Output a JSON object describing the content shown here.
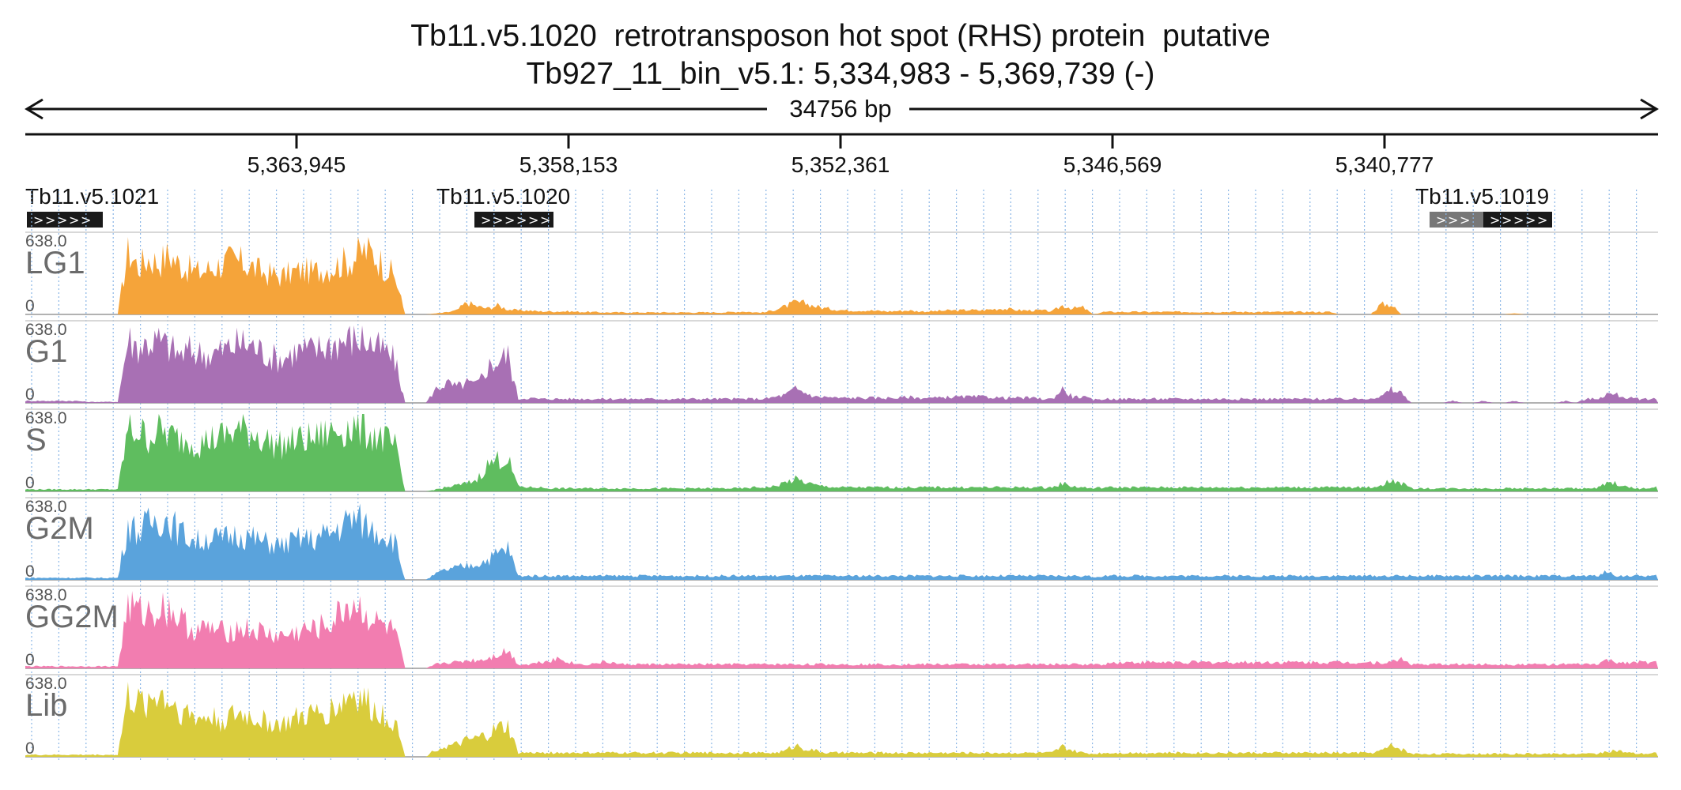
{
  "title": {
    "line1": "Tb11.v5.1020  retrotransposon hot spot (RHS) protein  putative",
    "line2": "Tb927_11_bin_v5.1: 5,334,983 - 5,369,739 (-)"
  },
  "ruler": {
    "span_label": "34756 bp",
    "ticks": [
      "5,363,945",
      "5,358,153",
      "5,352,361",
      "5,346,569",
      "5,340,777"
    ]
  },
  "genes": [
    {
      "name": "Tb11.v5.1021",
      "strand_glyph": ">"
    },
    {
      "name": "Tb11.v5.1020",
      "strand_glyph": ">"
    },
    {
      "name": "Tb11.v5.1019",
      "strand_glyph": ">"
    }
  ],
  "colors": {
    "LG1": "#f5a43a",
    "G1": "#a870b4",
    "S": "#5fbd5f",
    "G2M": "#5aa3dc",
    "GG2M": "#f27db0",
    "Lib": "#d9cc3c",
    "gene_box": "#1a1a1a",
    "gene_box_utr": "#777777",
    "gridline": "#8ab6e6"
  },
  "chart_data": {
    "type": "area",
    "x_range": [
      5369739,
      5334983
    ],
    "x_direction": "reversed (minus strand)",
    "ylim": [
      0,
      638.0
    ],
    "y_max_label": "638.0",
    "y_min_label": "0",
    "grid": "dotted vertical",
    "series": [
      {
        "name": "LG1",
        "profile": [
          0,
          0,
          0,
          0,
          0,
          0,
          0,
          0,
          0,
          0,
          640,
          480,
          560,
          520,
          600,
          500,
          450,
          420,
          460,
          500,
          540,
          520,
          480,
          420,
          400,
          380,
          420,
          440,
          420,
          460,
          480,
          520,
          560,
          640,
          600,
          480,
          380,
          0,
          0,
          0,
          10,
          20,
          40,
          120,
          80,
          60,
          90,
          50,
          40,
          40,
          30,
          30,
          30,
          30,
          25,
          25,
          20,
          20,
          20,
          20,
          20,
          20,
          20,
          20,
          20,
          20,
          20,
          20,
          20,
          25,
          30,
          20,
          20,
          50,
          80,
          120,
          110,
          80,
          60,
          50,
          40,
          40,
          40,
          35,
          30,
          35,
          40,
          30,
          30,
          35,
          40,
          40,
          45,
          40,
          50,
          60,
          50,
          40,
          40,
          40,
          30,
          90,
          60,
          70,
          0,
          25,
          25,
          25,
          25,
          25,
          25,
          25,
          25,
          25,
          25,
          25,
          25,
          25,
          25,
          25,
          25,
          25,
          25,
          25,
          25,
          25,
          25,
          25,
          0,
          0,
          0,
          0,
          100,
          100,
          0,
          0,
          0,
          0,
          0,
          0,
          0,
          0,
          0,
          0,
          0,
          15,
          0,
          0,
          0,
          0,
          0,
          0,
          0,
          0,
          0,
          0,
          0,
          0,
          0,
          0
        ]
      },
      {
        "name": "G1",
        "profile": [
          20,
          20,
          20,
          20,
          20,
          20,
          10,
          10,
          10,
          10,
          640,
          560,
          600,
          620,
          560,
          480,
          520,
          500,
          480,
          520,
          560,
          600,
          580,
          520,
          460,
          440,
          500,
          540,
          520,
          560,
          600,
          620,
          640,
          640,
          560,
          520,
          420,
          0,
          0,
          0,
          140,
          200,
          160,
          200,
          180,
          360,
          420,
          480,
          40,
          50,
          40,
          40,
          40,
          40,
          40,
          40,
          40,
          40,
          40,
          40,
          40,
          40,
          40,
          40,
          40,
          40,
          40,
          40,
          40,
          40,
          40,
          40,
          40,
          60,
          80,
          140,
          100,
          60,
          60,
          50,
          50,
          50,
          50,
          50,
          50,
          50,
          60,
          50,
          50,
          50,
          60,
          60,
          60,
          60,
          60,
          50,
          50,
          50,
          50,
          40,
          40,
          140,
          60,
          60,
          30,
          40,
          40,
          40,
          40,
          40,
          40,
          40,
          40,
          40,
          40,
          40,
          40,
          40,
          40,
          40,
          40,
          40,
          40,
          40,
          40,
          40,
          40,
          40,
          40,
          40,
          40,
          50,
          60,
          130,
          100,
          0,
          0,
          0,
          0,
          20,
          0,
          0,
          20,
          0,
          0,
          20,
          0,
          0,
          0,
          0,
          20,
          0,
          40,
          40,
          90,
          80,
          50,
          40,
          40,
          40
        ]
      },
      {
        "name": "S",
        "profile": [
          20,
          20,
          20,
          20,
          20,
          20,
          20,
          20,
          20,
          20,
          620,
          600,
          540,
          620,
          560,
          520,
          520,
          480,
          520,
          540,
          580,
          620,
          600,
          540,
          480,
          460,
          500,
          520,
          520,
          560,
          600,
          630,
          640,
          620,
          560,
          520,
          440,
          0,
          0,
          0,
          20,
          40,
          60,
          80,
          120,
          260,
          320,
          320,
          50,
          40,
          40,
          30,
          30,
          30,
          30,
          30,
          30,
          30,
          30,
          30,
          30,
          30,
          30,
          30,
          30,
          30,
          30,
          30,
          30,
          30,
          30,
          40,
          40,
          50,
          90,
          120,
          90,
          60,
          50,
          40,
          40,
          40,
          40,
          40,
          40,
          40,
          40,
          40,
          40,
          40,
          40,
          40,
          40,
          40,
          40,
          40,
          40,
          40,
          40,
          40,
          40,
          80,
          50,
          40,
          30,
          40,
          40,
          40,
          40,
          40,
          40,
          40,
          40,
          40,
          40,
          40,
          40,
          40,
          40,
          40,
          40,
          40,
          40,
          40,
          40,
          40,
          40,
          40,
          40,
          40,
          40,
          40,
          60,
          110,
          80,
          30,
          30,
          30,
          30,
          30,
          30,
          30,
          30,
          30,
          30,
          30,
          30,
          30,
          30,
          30,
          30,
          30,
          30,
          30,
          80,
          80,
          40,
          30,
          30,
          40
        ]
      },
      {
        "name": "G2M",
        "profile": [
          20,
          20,
          20,
          20,
          20,
          20,
          20,
          20,
          20,
          20,
          560,
          480,
          560,
          620,
          600,
          480,
          420,
          380,
          440,
          400,
          440,
          460,
          420,
          380,
          360,
          340,
          380,
          420,
          400,
          440,
          480,
          560,
          620,
          560,
          500,
          460,
          380,
          0,
          0,
          0,
          60,
          100,
          120,
          140,
          160,
          200,
          260,
          320,
          40,
          40,
          40,
          40,
          40,
          40,
          40,
          40,
          40,
          40,
          40,
          40,
          40,
          40,
          40,
          40,
          40,
          40,
          40,
          40,
          40,
          40,
          40,
          40,
          40,
          40,
          40,
          40,
          40,
          40,
          40,
          40,
          40,
          40,
          40,
          40,
          40,
          40,
          40,
          40,
          40,
          40,
          40,
          40,
          40,
          40,
          40,
          40,
          40,
          40,
          40,
          40,
          40,
          40,
          40,
          40,
          30,
          40,
          40,
          40,
          40,
          40,
          40,
          40,
          40,
          40,
          40,
          40,
          40,
          40,
          40,
          40,
          40,
          40,
          40,
          40,
          40,
          40,
          40,
          40,
          40,
          40,
          40,
          40,
          40,
          40,
          40,
          40,
          40,
          40,
          40,
          40,
          40,
          40,
          40,
          40,
          40,
          40,
          40,
          40,
          40,
          40,
          40,
          40,
          40,
          40,
          80,
          40,
          40,
          40,
          40,
          40
        ]
      },
      {
        "name": "GG2M",
        "profile": [
          20,
          20,
          20,
          20,
          20,
          20,
          20,
          20,
          20,
          20,
          640,
          560,
          560,
          600,
          600,
          500,
          400,
          380,
          400,
          360,
          380,
          400,
          380,
          360,
          330,
          320,
          340,
          380,
          380,
          420,
          460,
          600,
          640,
          560,
          460,
          420,
          360,
          0,
          0,
          0,
          40,
          60,
          60,
          80,
          80,
          100,
          140,
          180,
          40,
          40,
          60,
          80,
          100,
          60,
          40,
          40,
          60,
          60,
          40,
          40,
          40,
          40,
          40,
          40,
          40,
          40,
          40,
          40,
          40,
          40,
          40,
          40,
          40,
          40,
          40,
          40,
          40,
          40,
          40,
          40,
          40,
          40,
          40,
          40,
          40,
          40,
          40,
          40,
          40,
          40,
          40,
          40,
          40,
          40,
          40,
          40,
          40,
          40,
          40,
          40,
          40,
          40,
          40,
          40,
          40,
          40,
          60,
          60,
          60,
          60,
          60,
          60,
          60,
          60,
          60,
          60,
          60,
          60,
          60,
          60,
          60,
          60,
          60,
          60,
          60,
          60,
          60,
          60,
          60,
          60,
          60,
          60,
          60,
          60,
          100,
          40,
          40,
          40,
          40,
          40,
          40,
          40,
          40,
          40,
          40,
          40,
          40,
          40,
          40,
          40,
          40,
          40,
          40,
          40,
          80,
          60,
          60,
          60,
          60,
          60
        ]
      },
      {
        "name": "Lib",
        "profile": [
          20,
          20,
          20,
          20,
          20,
          20,
          20,
          20,
          20,
          20,
          600,
          520,
          560,
          640,
          560,
          480,
          420,
          380,
          400,
          360,
          400,
          420,
          400,
          360,
          340,
          320,
          360,
          400,
          420,
          440,
          480,
          560,
          640,
          560,
          460,
          420,
          360,
          0,
          0,
          0,
          80,
          100,
          120,
          160,
          180,
          220,
          280,
          300,
          40,
          40,
          40,
          40,
          40,
          40,
          40,
          40,
          40,
          40,
          40,
          40,
          40,
          40,
          40,
          40,
          40,
          40,
          40,
          40,
          40,
          40,
          40,
          40,
          40,
          40,
          60,
          120,
          80,
          60,
          40,
          40,
          40,
          40,
          40,
          40,
          40,
          40,
          40,
          40,
          40,
          40,
          40,
          40,
          40,
          40,
          40,
          40,
          40,
          40,
          40,
          40,
          40,
          100,
          60,
          40,
          30,
          40,
          40,
          40,
          40,
          40,
          40,
          40,
          40,
          40,
          40,
          40,
          40,
          40,
          40,
          40,
          40,
          40,
          40,
          40,
          40,
          40,
          40,
          40,
          40,
          40,
          40,
          40,
          60,
          110,
          80,
          30,
          30,
          30,
          30,
          30,
          30,
          30,
          30,
          30,
          30,
          30,
          30,
          30,
          30,
          30,
          30,
          30,
          30,
          30,
          60,
          60,
          40,
          30,
          30,
          40
        ]
      }
    ]
  }
}
